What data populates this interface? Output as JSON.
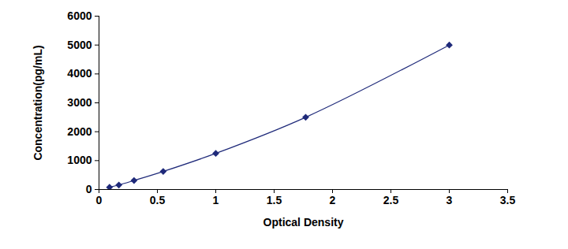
{
  "chart_data": {
    "type": "line",
    "x_label": "Optical Density",
    "y_label": "Concentration(pg/mL)",
    "x": [
      0.09,
      0.17,
      0.3,
      0.55,
      1.0,
      1.77,
      3.0
    ],
    "values": [
      78,
      156,
      312,
      625,
      1250,
      2500,
      5000
    ],
    "color": "#1f2a7a",
    "marker": "diamond",
    "line_style": "solid",
    "grid": false,
    "xlim": [
      0,
      3.5
    ],
    "xticks": [
      0,
      0.5,
      1,
      1.5,
      2,
      2.5,
      3,
      3.5
    ],
    "ylim": [
      0,
      6000
    ],
    "yticks": [
      0,
      1000,
      2000,
      3000,
      4000,
      5000,
      6000
    ]
  }
}
